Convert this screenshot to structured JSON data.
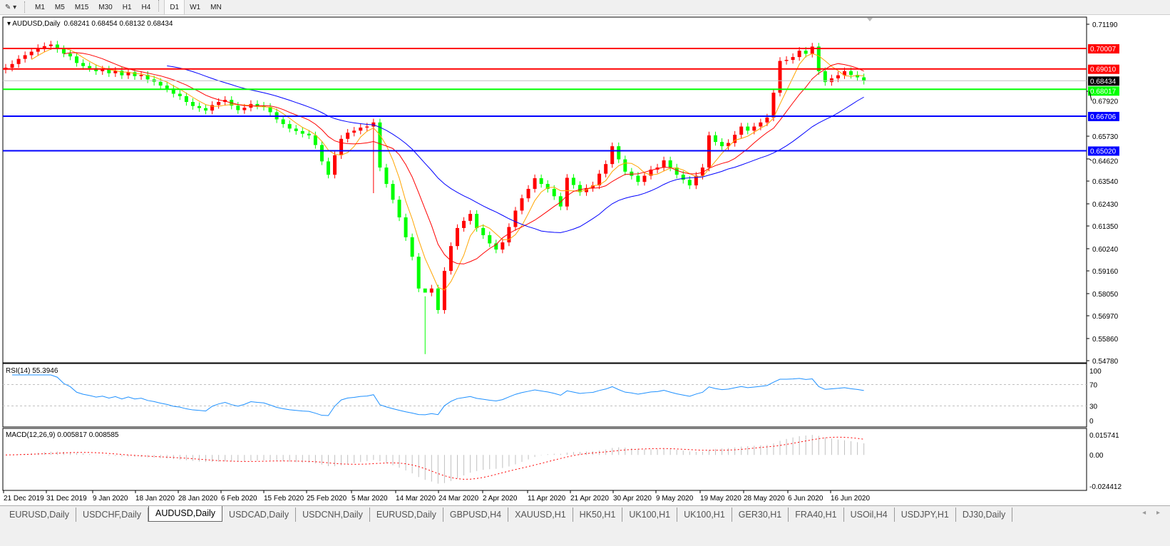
{
  "toolbar": {
    "timeframes": [
      "M1",
      "M5",
      "M15",
      "M30",
      "H1",
      "H4",
      "D1",
      "W1",
      "MN"
    ],
    "active": "D1"
  },
  "chart_header": {
    "symbol": "AUDUSD,Daily",
    "ohlc": "0.68241 0.68454 0.68132 0.68434"
  },
  "colors": {
    "bull": "#ff0000",
    "bear": "#00ff00",
    "bid_line": "#c0c0c0",
    "rsi": "#1e90ff",
    "macd_hist": "#c0c0c0",
    "macd_signal": "#ff0000"
  },
  "chart_data": [
    {
      "type": "candlestick",
      "title": "AUDUSD,Daily",
      "ylim": [
        0.5478,
        0.7119
      ],
      "yticks": [
        "0.71190",
        "0.67920",
        "0.65730",
        "0.64620",
        "0.63540",
        "0.62430",
        "0.61350",
        "0.60240",
        "0.59160",
        "0.58050",
        "0.56970",
        "0.55860",
        "0.54780"
      ],
      "ytick_values": [
        0.7119,
        0.6792,
        0.6573,
        0.6462,
        0.6354,
        0.6243,
        0.6135,
        0.6024,
        0.5916,
        0.5805,
        0.5697,
        0.5586,
        0.5478
      ],
      "xlabels": [
        "21 Dec 2019",
        "31 Dec 2019",
        "9 Jan 2020",
        "18 Jan 2020",
        "28 Jan 2020",
        "6 Feb 2020",
        "15 Feb 2020",
        "25 Feb 2020",
        "5 Mar 2020",
        "14 Mar 2020",
        "24 Mar 2020",
        "2 Apr 2020",
        "11 Apr 2020",
        "21 Apr 2020",
        "30 Apr 2020",
        "9 May 2020",
        "19 May 2020",
        "28 May 2020",
        "6 Jun 2020",
        "16 Jun 2020"
      ],
      "close": [
        0.6907,
        0.6925,
        0.695,
        0.6968,
        0.6985,
        0.7003,
        0.7012,
        0.702,
        0.6998,
        0.6976,
        0.6962,
        0.693,
        0.6915,
        0.6905,
        0.689,
        0.6898,
        0.688,
        0.6892,
        0.687,
        0.6885,
        0.6866,
        0.6872,
        0.685,
        0.6838,
        0.682,
        0.6805,
        0.678,
        0.6768,
        0.674,
        0.672,
        0.671,
        0.6698,
        0.6725,
        0.674,
        0.675,
        0.6722,
        0.67,
        0.6712,
        0.673,
        0.6722,
        0.6716,
        0.669,
        0.6655,
        0.6632,
        0.661,
        0.6598,
        0.6585,
        0.6577,
        0.653,
        0.645,
        0.6385,
        0.648,
        0.656,
        0.659,
        0.66,
        0.6615,
        0.662,
        0.664,
        0.642,
        0.634,
        0.6263,
        0.6177,
        0.608,
        0.5985,
        0.583,
        0.581,
        0.583,
        0.5725,
        0.5916,
        0.6037,
        0.6125,
        0.616,
        0.6194,
        0.6125,
        0.609,
        0.605,
        0.602,
        0.6055,
        0.613,
        0.621,
        0.627,
        0.6316,
        0.6368,
        0.634,
        0.6316,
        0.628,
        0.623,
        0.637,
        0.6335,
        0.63,
        0.632,
        0.6333,
        0.639,
        0.6437,
        0.6524,
        0.646,
        0.64,
        0.638,
        0.635,
        0.638,
        0.641,
        0.642,
        0.6455,
        0.642,
        0.6385,
        0.636,
        0.6333,
        0.638,
        0.642,
        0.6577,
        0.6545,
        0.6524,
        0.654,
        0.658,
        0.662,
        0.66,
        0.662,
        0.664,
        0.6664,
        0.6785,
        0.694,
        0.6945,
        0.6959,
        0.699,
        0.6975,
        0.701,
        0.689,
        0.6837,
        0.6855,
        0.687,
        0.689,
        0.6872,
        0.686,
        0.6843
      ],
      "moving_averages": [
        {
          "period": 5,
          "color": "#ffa500"
        },
        {
          "period": 10,
          "color": "#ff0000"
        },
        {
          "period": 26,
          "color": "#0000ff"
        }
      ],
      "hlines": [
        {
          "value": 0.70007,
          "label": "0.70007",
          "color": "#ff0000"
        },
        {
          "value": 0.6901,
          "label": "0.69010",
          "color": "#ff0000"
        },
        {
          "value": 0.68434,
          "label": "0.68434",
          "color": "#c0c0c0",
          "label_bg": "#000000"
        },
        {
          "value": 0.68017,
          "label": "0.68017",
          "color": "#00ff00"
        },
        {
          "value": 0.66706,
          "label": "0.66706",
          "color": "#0000ff"
        },
        {
          "value": 0.6502,
          "label": "0.65020",
          "color": "#0000ff"
        }
      ]
    },
    {
      "type": "line",
      "title": "RSI(14) 55.3946",
      "period": 14,
      "ylim": [
        0,
        100
      ],
      "yticks": [
        "100",
        "70",
        "30",
        "0"
      ],
      "levels": [
        70,
        30
      ]
    },
    {
      "type": "bar",
      "title": "MACD(12,26,9) 0.005817 0.008585",
      "params": [
        12,
        26,
        9
      ],
      "ylim": [
        -0.024412,
        0.015741
      ],
      "yticks": [
        "0.015741",
        "0.00",
        "-0.024412"
      ]
    }
  ],
  "tabs": [
    "EURUSD,Daily",
    "USDCHF,Daily",
    "AUDUSD,Daily",
    "USDCAD,Daily",
    "USDCNH,Daily",
    "EURUSD,Daily",
    "GBPUSD,H4",
    "XAUUSD,H1",
    "HK50,H1",
    "UK100,H1",
    "UK100,H1",
    "GER30,H1",
    "FRA40,H1",
    "USOil,H4",
    "USDJPY,H1",
    "DJ30,Daily"
  ],
  "active_tab": "AUDUSD,Daily"
}
